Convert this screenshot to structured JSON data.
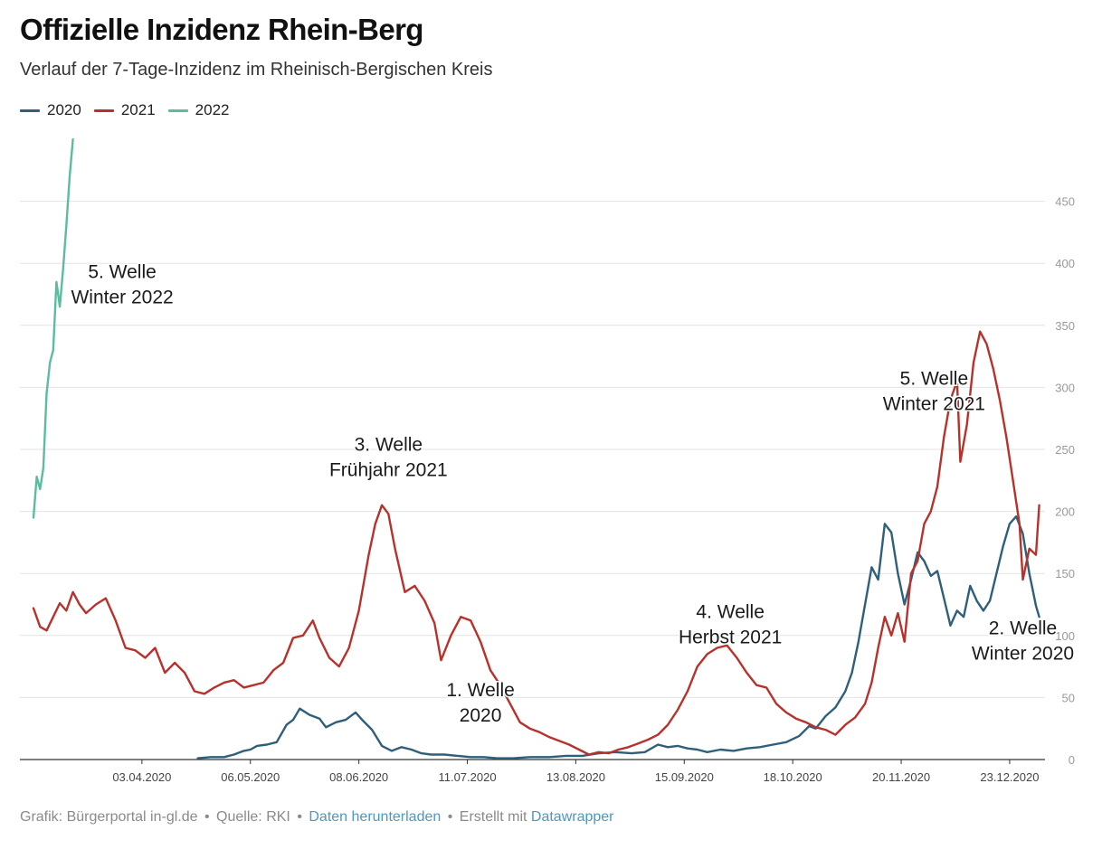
{
  "title": "Offizielle Inzidenz Rhein-Berg",
  "subtitle": "Verlauf der 7-Tage-Inzidenz im Rheinisch-Bergischen Kreis",
  "footer": {
    "grafik": "Grafik: Bürgerportal in-gl.de",
    "quelle": "Quelle: RKI",
    "download_link": "Daten herunterladen",
    "erstellt": "Erstellt mit",
    "datawrapper_link": "Datawrapper",
    "separator": "•"
  },
  "colors": {
    "2020": "#2f5f7a",
    "2021": "#b8322c",
    "2022": "#5cbc9f",
    "grid": "#e3e3e3",
    "axis_text": "#999999",
    "link": "#4b98c3"
  },
  "chart_data": {
    "type": "line",
    "title": "Offizielle Inzidenz Rhein-Berg",
    "subtitle": "Verlauf der 7-Tage-Inzidenz im Rheinisch-Bergischen Kreis",
    "xlabel": "",
    "ylabel": "",
    "x_axis_start": "2020-03-01",
    "x_ticks": [
      "03.04.2020",
      "06.05.2020",
      "08.06.2020",
      "11.07.2020",
      "13.08.2020",
      "15.09.2020",
      "18.10.2020",
      "20.11.2020",
      "23.12.2020"
    ],
    "x_range": [
      "2020-03-01",
      "2020-12-31"
    ],
    "y_ticks": [
      0,
      50,
      100,
      150,
      200,
      250,
      300,
      350,
      400,
      450
    ],
    "ylim": [
      0,
      500
    ],
    "grid": true,
    "legend_position": "top-left",
    "series": [
      {
        "name": "2020",
        "points": [
          [
            "2020-04-20",
            1
          ],
          [
            "2020-04-24",
            2
          ],
          [
            "2020-04-28",
            2
          ],
          [
            "2020-05-01",
            4
          ],
          [
            "2020-05-04",
            7
          ],
          [
            "2020-05-06",
            8
          ],
          [
            "2020-05-08",
            11
          ],
          [
            "2020-05-11",
            12
          ],
          [
            "2020-05-14",
            14
          ],
          [
            "2020-05-17",
            28
          ],
          [
            "2020-05-19",
            32
          ],
          [
            "2020-05-21",
            41
          ],
          [
            "2020-05-24",
            36
          ],
          [
            "2020-05-27",
            33
          ],
          [
            "2020-05-29",
            26
          ],
          [
            "2020-06-01",
            30
          ],
          [
            "2020-06-04",
            32
          ],
          [
            "2020-06-07",
            38
          ],
          [
            "2020-06-09",
            32
          ],
          [
            "2020-06-12",
            24
          ],
          [
            "2020-06-15",
            11
          ],
          [
            "2020-06-18",
            7
          ],
          [
            "2020-06-21",
            10
          ],
          [
            "2020-06-24",
            8
          ],
          [
            "2020-06-27",
            5
          ],
          [
            "2020-06-30",
            4
          ],
          [
            "2020-07-04",
            4
          ],
          [
            "2020-07-08",
            3
          ],
          [
            "2020-07-12",
            2
          ],
          [
            "2020-07-16",
            2
          ],
          [
            "2020-07-20",
            1
          ],
          [
            "2020-07-25",
            1
          ],
          [
            "2020-07-30",
            2
          ],
          [
            "2020-08-05",
            2
          ],
          [
            "2020-08-10",
            3
          ],
          [
            "2020-08-15",
            3
          ],
          [
            "2020-08-20",
            5
          ],
          [
            "2020-08-25",
            6
          ],
          [
            "2020-08-30",
            5
          ],
          [
            "2020-09-03",
            6
          ],
          [
            "2020-09-07",
            12
          ],
          [
            "2020-09-10",
            10
          ],
          [
            "2020-09-13",
            11
          ],
          [
            "2020-09-16",
            9
          ],
          [
            "2020-09-19",
            8
          ],
          [
            "2020-09-22",
            6
          ],
          [
            "2020-09-26",
            8
          ],
          [
            "2020-09-30",
            7
          ],
          [
            "2020-10-04",
            9
          ],
          [
            "2020-10-08",
            10
          ],
          [
            "2020-10-12",
            12
          ],
          [
            "2020-10-16",
            14
          ],
          [
            "2020-10-20",
            19
          ],
          [
            "2020-10-23",
            27
          ],
          [
            "2020-10-25",
            25
          ],
          [
            "2020-10-28",
            35
          ],
          [
            "2020-10-31",
            42
          ],
          [
            "2020-11-03",
            55
          ],
          [
            "2020-11-05",
            70
          ],
          [
            "2020-11-07",
            95
          ],
          [
            "2020-11-09",
            125
          ],
          [
            "2020-11-11",
            155
          ],
          [
            "2020-11-13",
            145
          ],
          [
            "2020-11-15",
            190
          ],
          [
            "2020-11-17",
            183
          ],
          [
            "2020-11-19",
            150
          ],
          [
            "2020-11-21",
            125
          ],
          [
            "2020-11-23",
            145
          ],
          [
            "2020-11-25",
            167
          ],
          [
            "2020-11-27",
            160
          ],
          [
            "2020-11-29",
            148
          ],
          [
            "2020-12-01",
            152
          ],
          [
            "2020-12-03",
            130
          ],
          [
            "2020-12-05",
            108
          ],
          [
            "2020-12-07",
            120
          ],
          [
            "2020-12-09",
            115
          ],
          [
            "2020-12-11",
            140
          ],
          [
            "2020-12-13",
            128
          ],
          [
            "2020-12-15",
            120
          ],
          [
            "2020-12-17",
            128
          ],
          [
            "2020-12-19",
            150
          ],
          [
            "2020-12-21",
            172
          ],
          [
            "2020-12-23",
            190
          ],
          [
            "2020-12-25",
            196
          ],
          [
            "2020-12-27",
            182
          ],
          [
            "2020-12-29",
            150
          ],
          [
            "2020-12-31",
            124
          ],
          [
            "2021-01-01",
            115
          ]
        ]
      },
      {
        "name": "2021",
        "points": [
          [
            "2020-03-01",
            122
          ],
          [
            "2020-03-03",
            107
          ],
          [
            "2020-03-05",
            104
          ],
          [
            "2020-03-07",
            115
          ],
          [
            "2020-03-09",
            126
          ],
          [
            "2020-03-11",
            120
          ],
          [
            "2020-03-13",
            135
          ],
          [
            "2020-03-15",
            125
          ],
          [
            "2020-03-17",
            118
          ],
          [
            "2020-03-20",
            125
          ],
          [
            "2020-03-23",
            130
          ],
          [
            "2020-03-26",
            112
          ],
          [
            "2020-03-29",
            90
          ],
          [
            "2020-04-01",
            88
          ],
          [
            "2020-04-04",
            82
          ],
          [
            "2020-04-07",
            90
          ],
          [
            "2020-04-10",
            70
          ],
          [
            "2020-04-13",
            78
          ],
          [
            "2020-04-16",
            70
          ],
          [
            "2020-04-19",
            55
          ],
          [
            "2020-04-22",
            53
          ],
          [
            "2020-04-25",
            58
          ],
          [
            "2020-04-28",
            62
          ],
          [
            "2020-05-01",
            64
          ],
          [
            "2020-05-04",
            58
          ],
          [
            "2020-05-07",
            60
          ],
          [
            "2020-05-10",
            62
          ],
          [
            "2020-05-13",
            72
          ],
          [
            "2020-05-16",
            78
          ],
          [
            "2020-05-19",
            98
          ],
          [
            "2020-05-22",
            100
          ],
          [
            "2020-05-25",
            112
          ],
          [
            "2020-05-27",
            98
          ],
          [
            "2020-05-30",
            82
          ],
          [
            "2020-06-02",
            75
          ],
          [
            "2020-06-05",
            90
          ],
          [
            "2020-06-08",
            120
          ],
          [
            "2020-06-11",
            165
          ],
          [
            "2020-06-13",
            190
          ],
          [
            "2020-06-15",
            205
          ],
          [
            "2020-06-17",
            198
          ],
          [
            "2020-06-19",
            170
          ],
          [
            "2020-06-22",
            135
          ],
          [
            "2020-06-25",
            140
          ],
          [
            "2020-06-28",
            128
          ],
          [
            "2020-07-01",
            110
          ],
          [
            "2020-07-03",
            80
          ],
          [
            "2020-07-06",
            100
          ],
          [
            "2020-07-09",
            115
          ],
          [
            "2020-07-12",
            112
          ],
          [
            "2020-07-15",
            95
          ],
          [
            "2020-07-18",
            72
          ],
          [
            "2020-07-21",
            60
          ],
          [
            "2020-07-24",
            45
          ],
          [
            "2020-07-27",
            30
          ],
          [
            "2020-07-30",
            25
          ],
          [
            "2020-08-02",
            22
          ],
          [
            "2020-08-05",
            18
          ],
          [
            "2020-08-08",
            15
          ],
          [
            "2020-08-11",
            12
          ],
          [
            "2020-08-14",
            8
          ],
          [
            "2020-08-17",
            4
          ],
          [
            "2020-08-20",
            6
          ],
          [
            "2020-08-23",
            5
          ],
          [
            "2020-08-26",
            8
          ],
          [
            "2020-08-29",
            10
          ],
          [
            "2020-09-01",
            13
          ],
          [
            "2020-09-04",
            16
          ],
          [
            "2020-09-07",
            20
          ],
          [
            "2020-09-10",
            28
          ],
          [
            "2020-09-13",
            40
          ],
          [
            "2020-09-16",
            55
          ],
          [
            "2020-09-19",
            75
          ],
          [
            "2020-09-22",
            85
          ],
          [
            "2020-09-25",
            90
          ],
          [
            "2020-09-28",
            92
          ],
          [
            "2020-10-01",
            82
          ],
          [
            "2020-10-04",
            70
          ],
          [
            "2020-10-07",
            60
          ],
          [
            "2020-10-10",
            58
          ],
          [
            "2020-10-13",
            45
          ],
          [
            "2020-10-16",
            38
          ],
          [
            "2020-10-19",
            33
          ],
          [
            "2020-10-22",
            30
          ],
          [
            "2020-10-25",
            26
          ],
          [
            "2020-10-28",
            24
          ],
          [
            "2020-10-31",
            20
          ],
          [
            "2020-11-03",
            28
          ],
          [
            "2020-11-06",
            34
          ],
          [
            "2020-11-09",
            45
          ],
          [
            "2020-11-11",
            62
          ],
          [
            "2020-11-13",
            90
          ],
          [
            "2020-11-15",
            115
          ],
          [
            "2020-11-17",
            100
          ],
          [
            "2020-11-19",
            118
          ],
          [
            "2020-11-21",
            95
          ],
          [
            "2020-11-23",
            150
          ],
          [
            "2020-11-25",
            160
          ],
          [
            "2020-11-27",
            190
          ],
          [
            "2020-11-29",
            200
          ],
          [
            "2020-12-01",
            220
          ],
          [
            "2020-12-03",
            260
          ],
          [
            "2020-12-05",
            290
          ],
          [
            "2020-12-07",
            305
          ],
          [
            "2020-12-08",
            240
          ],
          [
            "2020-12-10",
            270
          ],
          [
            "2020-12-12",
            320
          ],
          [
            "2020-12-14",
            345
          ],
          [
            "2020-12-16",
            335
          ],
          [
            "2020-12-18",
            315
          ],
          [
            "2020-12-20",
            290
          ],
          [
            "2020-12-22",
            260
          ],
          [
            "2020-12-24",
            225
          ],
          [
            "2020-12-26",
            190
          ],
          [
            "2020-12-27",
            145
          ],
          [
            "2020-12-29",
            170
          ],
          [
            "2020-12-31",
            165
          ],
          [
            "2021-01-01",
            205
          ]
        ]
      },
      {
        "name": "2022",
        "points": [
          [
            "2020-03-01",
            195
          ],
          [
            "2020-03-02",
            228
          ],
          [
            "2020-03-03",
            218
          ],
          [
            "2020-03-04",
            235
          ],
          [
            "2020-03-05",
            295
          ],
          [
            "2020-03-06",
            320
          ],
          [
            "2020-03-07",
            330
          ],
          [
            "2020-03-08",
            385
          ],
          [
            "2020-03-09",
            365
          ],
          [
            "2020-03-10",
            395
          ],
          [
            "2020-03-11",
            430
          ],
          [
            "2020-03-12",
            470
          ],
          [
            "2020-03-13",
            500
          ]
        ]
      }
    ],
    "annotations": [
      {
        "lines": [
          "5. Welle",
          "Winter 2022"
        ],
        "date": "2020-03-28",
        "value": 388
      },
      {
        "lines": [
          "3. Welle",
          "Frühjahr 2021"
        ],
        "date": "2020-06-17",
        "value": 249
      },
      {
        "lines": [
          "1. Welle",
          "2020"
        ],
        "date": "2020-07-15",
        "value": 51
      },
      {
        "lines": [
          "4. Welle",
          "Herbst 2021"
        ],
        "date": "2020-09-29",
        "value": 114
      },
      {
        "lines": [
          "5. Welle",
          "Winter 2021"
        ],
        "date": "2020-11-30",
        "value": 302
      },
      {
        "lines": [
          "2. Welle",
          "Winter 2020"
        ],
        "date": "2020-12-27",
        "value": 101
      }
    ]
  }
}
